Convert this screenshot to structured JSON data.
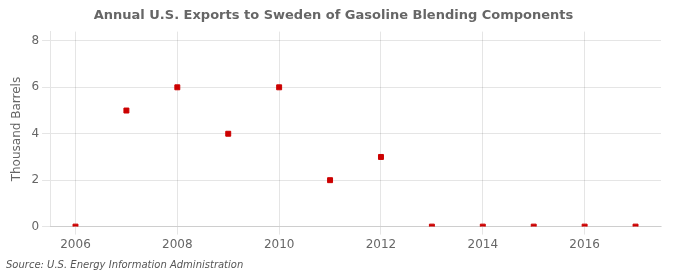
{
  "chart_data": {
    "type": "scatter",
    "title": "Annual U.S. Exports to Sweden of Gasoline Blending Components",
    "ylabel": "Thousand Barrels",
    "annotations": [
      "Source: U.S. Energy Information Administration"
    ],
    "x": [
      2006,
      2007,
      2008,
      2009,
      2010,
      2011,
      2012,
      2013,
      2014,
      2015,
      2016,
      2017
    ],
    "values": [
      0,
      5,
      6,
      4,
      6,
      2,
      3,
      0,
      0,
      0,
      0,
      0
    ],
    "color": "#cc0000",
    "marker": "square",
    "xlim": [
      2005.5,
      2017.5
    ],
    "xticks": [
      2006,
      2008,
      2010,
      2012,
      2014,
      2016
    ],
    "ylim": [
      0,
      8.4
    ],
    "yticks": [
      0,
      2,
      4,
      6,
      8
    ],
    "grid": true
  }
}
